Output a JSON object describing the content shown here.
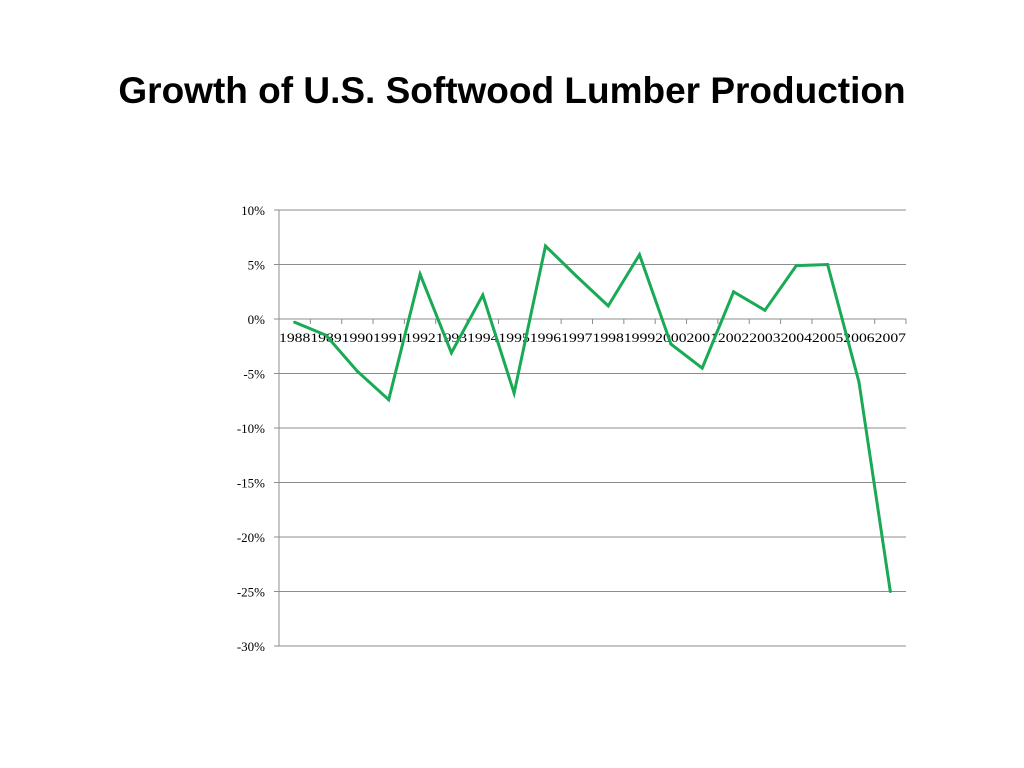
{
  "slide": {
    "title": "Growth of U.S. Softwood Lumber Production"
  },
  "chart_data": {
    "type": "line",
    "title": "Growth of U.S. Softwood Lumber Production",
    "xlabel": "",
    "ylabel": "",
    "ylim": [
      -30,
      10
    ],
    "y_ticks": [
      "10%",
      "5%",
      "0%",
      "-5%",
      "-10%",
      "-15%",
      "-20%",
      "-25%",
      "-30%"
    ],
    "y_tick_values": [
      10,
      5,
      0,
      -5,
      -10,
      -15,
      -20,
      -25,
      -30
    ],
    "categories": [
      "1988",
      "1989",
      "1990",
      "1991",
      "1992",
      "1993",
      "1994",
      "1995",
      "1996",
      "1997",
      "1998",
      "1999",
      "2000",
      "2001",
      "2002",
      "2003",
      "2004",
      "2005",
      "2006",
      "2007"
    ],
    "series": [
      {
        "values": [
          -0.3,
          -1.5,
          -4.8,
          -7.4,
          4.1,
          -3.1,
          2.2,
          -6.8,
          6.7,
          3.9,
          1.2,
          5.9,
          -2.3,
          -4.5,
          2.5,
          0.8,
          4.9,
          5.0,
          -5.8,
          -25.0
        ],
        "color": "#1aaa55"
      }
    ],
    "grid": true,
    "legend": "none"
  }
}
